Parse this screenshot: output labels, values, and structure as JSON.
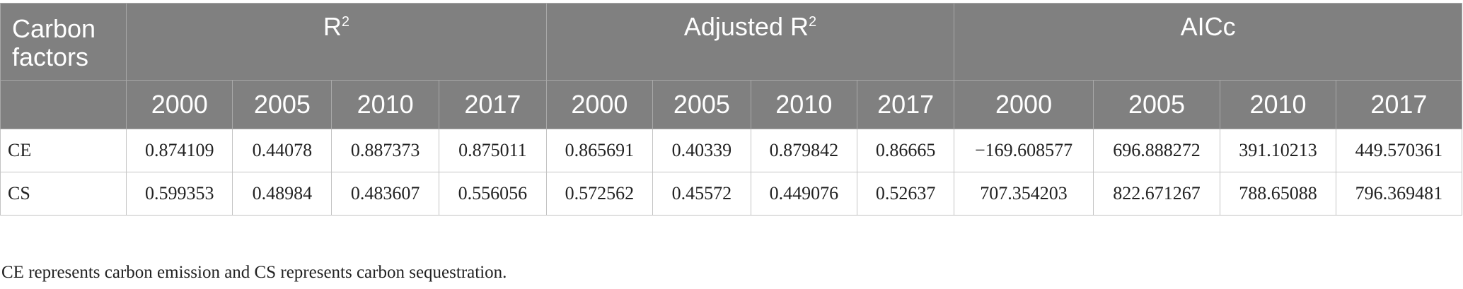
{
  "table": {
    "header": {
      "carbon_factors": "Carbon factors",
      "r2_label": "R",
      "r2_sup": "2",
      "adj_r2_label": "Adjusted R",
      "adj_r2_sup": "2",
      "aicc_label": "AICc",
      "years": [
        "2000",
        "2005",
        "2010",
        "2017",
        "2000",
        "2005",
        "2010",
        "2017",
        "2000",
        "2005",
        "2010",
        "2017"
      ]
    },
    "rows": [
      {
        "label": "CE",
        "values": [
          "0.874109",
          "0.44078",
          "0.887373",
          "0.875011",
          "0.865691",
          "0.40339",
          "0.879842",
          "0.86665",
          "−169.608577",
          "696.888272",
          "391.10213",
          "449.570361"
        ]
      },
      {
        "label": "CS",
        "values": [
          "0.599353",
          "0.48984",
          "0.483607",
          "0.556056",
          "0.572562",
          "0.45572",
          "0.449076",
          "0.52637",
          "707.354203",
          "822.671267",
          "788.65088",
          "796.369481"
        ]
      }
    ]
  },
  "footnote": "CE represents carbon emission and CS represents carbon sequestration."
}
